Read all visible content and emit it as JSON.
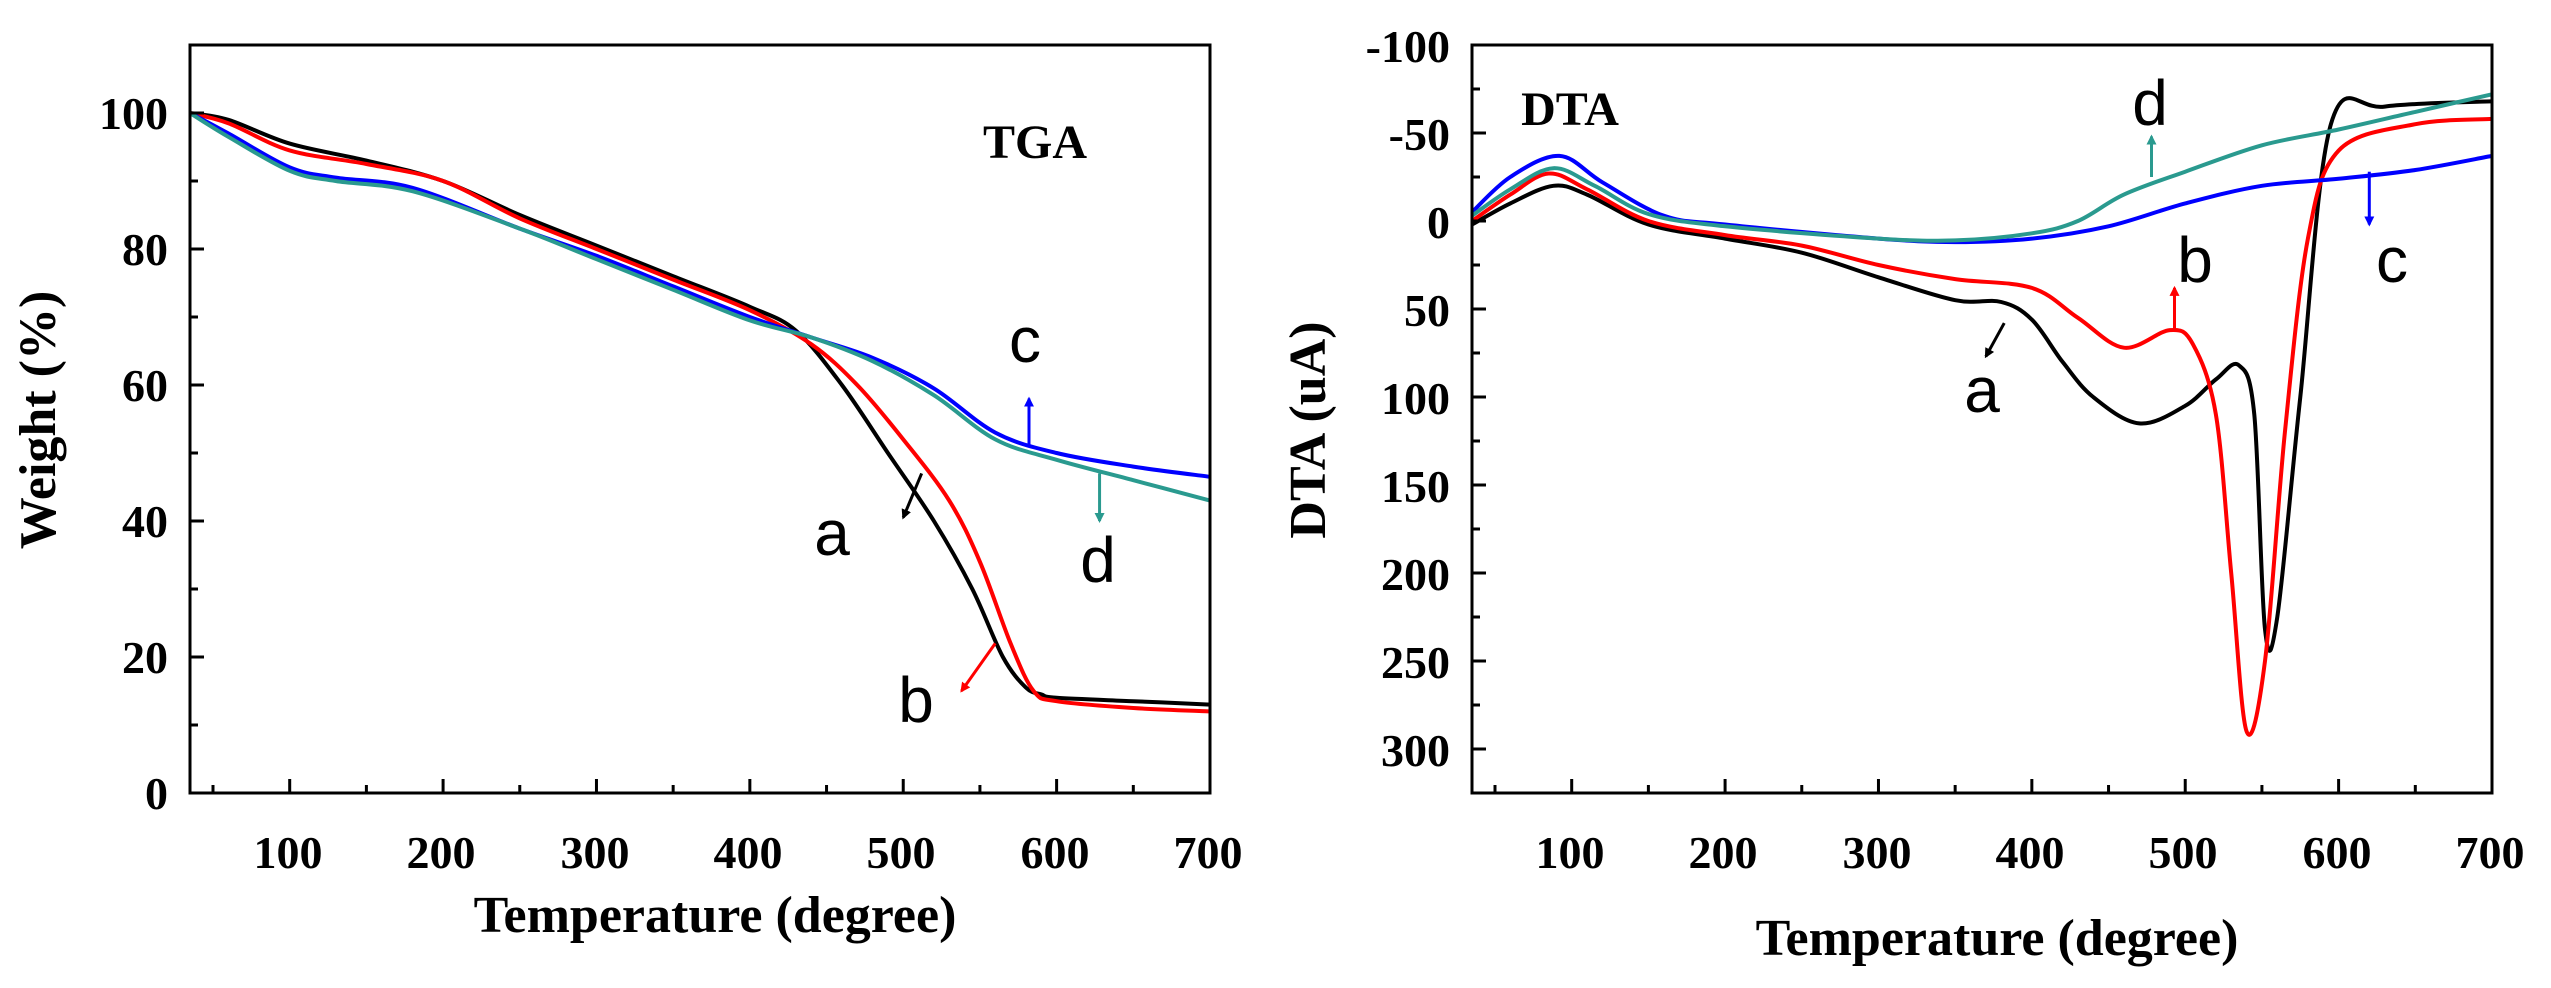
{
  "chart_data": [
    {
      "type": "line",
      "title": "TGA",
      "xlabel": "Temperature (degree)",
      "ylabel": "Weight (%)",
      "xlim": [
        35,
        700
      ],
      "ylim": [
        0,
        110
      ],
      "xticks": [
        100,
        200,
        300,
        400,
        500,
        600,
        700
      ],
      "yticks": [
        0,
        20,
        40,
        60,
        80,
        100
      ],
      "y_inverted": false,
      "series": [
        {
          "name": "a",
          "color": "#000000",
          "x": [
            35,
            60,
            100,
            150,
            200,
            250,
            300,
            350,
            400,
            430,
            460,
            490,
            520,
            545,
            565,
            580,
            590,
            600,
            650,
            700
          ],
          "y": [
            100,
            99,
            95.5,
            93,
            90,
            85,
            80.5,
            76,
            71.5,
            68,
            60,
            50,
            40,
            30,
            20,
            15.5,
            14.5,
            14,
            13.5,
            13
          ]
        },
        {
          "name": "b",
          "color": "#ff0000",
          "x": [
            35,
            60,
            100,
            150,
            200,
            250,
            300,
            350,
            400,
            440,
            470,
            500,
            530,
            550,
            570,
            585,
            600,
            650,
            700
          ],
          "y": [
            100,
            98.5,
            94.5,
            92.5,
            90,
            84.5,
            80,
            75.5,
            71,
            66,
            60,
            52,
            43,
            34,
            22,
            15,
            13.5,
            12.5,
            12
          ]
        },
        {
          "name": "c",
          "color": "#0000ff",
          "x": [
            35,
            60,
            100,
            130,
            180,
            250,
            300,
            350,
            400,
            440,
            480,
            520,
            560,
            600,
            650,
            700
          ],
          "y": [
            100,
            97,
            92,
            90.5,
            89,
            83,
            79,
            74.5,
            70,
            67,
            64,
            59.5,
            53,
            50,
            48,
            46.5
          ]
        },
        {
          "name": "d",
          "color": "#2a9a8f",
          "x": [
            35,
            60,
            100,
            130,
            180,
            250,
            300,
            350,
            400,
            440,
            480,
            520,
            560,
            600,
            650,
            700
          ],
          "y": [
            100,
            96.5,
            91.5,
            90,
            88.5,
            83,
            78.5,
            74,
            69.5,
            67,
            63.5,
            58.5,
            52,
            49,
            46,
            43
          ]
        }
      ],
      "annotations": [
        {
          "text": "c",
          "color": "#000000",
          "arrow_color": "#0000ff",
          "arrow_from": [
            582,
            51
          ],
          "arrow_to": [
            582,
            58
          ]
        },
        {
          "text": "d",
          "color": "#000000",
          "arrow_color": "#2a9a8f",
          "arrow_from": [
            628,
            47
          ],
          "arrow_to": [
            628,
            40
          ]
        },
        {
          "text": "a",
          "color": "#000000",
          "arrow_color": "#000000",
          "arrow_from": [
            512,
            47
          ],
          "arrow_to": [
            500,
            40.5
          ]
        },
        {
          "text": "b",
          "color": "#000000",
          "arrow_color": "#ff0000",
          "arrow_from": [
            560,
            22
          ],
          "arrow_to": [
            538,
            15
          ]
        }
      ]
    },
    {
      "type": "line",
      "title": "DTA",
      "xlabel": "Temperature (degree)",
      "ylabel": "DTA (uA)",
      "xlim": [
        35,
        700
      ],
      "ylim": [
        -100,
        325
      ],
      "xticks": [
        100,
        200,
        300,
        400,
        500,
        600,
        700
      ],
      "yticks": [
        -100,
        -50,
        0,
        50,
        100,
        150,
        200,
        250,
        300
      ],
      "y_inverted": true,
      "series": [
        {
          "name": "a",
          "color": "#000000",
          "x": [
            35,
            60,
            88,
            110,
            150,
            200,
            250,
            300,
            350,
            380,
            400,
            420,
            440,
            470,
            500,
            520,
            535,
            545,
            552,
            560,
            575,
            595,
            630,
            700
          ],
          "y": [
            2,
            -10,
            -20,
            -15,
            2,
            10,
            18,
            32,
            45,
            46,
            56,
            80,
            100,
            115,
            105,
            90,
            82,
            110,
            232,
            225,
            100,
            -55,
            -65,
            -68
          ]
        },
        {
          "name": "b",
          "color": "#ff0000",
          "x": [
            35,
            60,
            85,
            110,
            150,
            200,
            250,
            300,
            350,
            400,
            430,
            460,
            490,
            505,
            520,
            530,
            540,
            552,
            565,
            580,
            600,
            650,
            700
          ],
          "y": [
            0,
            -15,
            -27,
            -18,
            0,
            8,
            14,
            25,
            33,
            38,
            55,
            72,
            62,
            70,
            110,
            200,
            290,
            250,
            120,
            10,
            -40,
            -55,
            -58
          ]
        },
        {
          "name": "c",
          "color": "#0000ff",
          "x": [
            35,
            60,
            92,
            120,
            160,
            200,
            300,
            350,
            400,
            450,
            500,
            550,
            600,
            650,
            700
          ],
          "y": [
            -5,
            -25,
            -37,
            -22,
            -3,
            2,
            10,
            12,
            10,
            3,
            -10,
            -20,
            -24,
            -29,
            -37
          ]
        },
        {
          "name": "d",
          "color": "#2a9a8f",
          "x": [
            35,
            60,
            88,
            115,
            150,
            200,
            300,
            350,
            400,
            430,
            460,
            500,
            550,
            600,
            650,
            700
          ],
          "y": [
            -3,
            -18,
            -30,
            -20,
            -4,
            3,
            10,
            11,
            7,
            0,
            -15,
            -28,
            -43,
            -52,
            -62,
            -72
          ]
        }
      ],
      "annotations": [
        {
          "text": "d",
          "color": "#000000",
          "arrow_color": "#2a9a8f",
          "arrow_from": [
            478,
            -25
          ],
          "arrow_to": [
            478,
            -48
          ]
        },
        {
          "text": "c",
          "color": "#000000",
          "arrow_color": "#0000ff",
          "arrow_from": [
            620,
            -28
          ],
          "arrow_to": [
            620,
            2
          ]
        },
        {
          "text": "b",
          "color": "#000000",
          "arrow_color": "#ff0000",
          "arrow_from": [
            493,
            62
          ],
          "arrow_to": [
            493,
            38
          ]
        },
        {
          "text": "a",
          "color": "#000000",
          "arrow_color": "#000000",
          "arrow_from": [
            382,
            58
          ],
          "arrow_to": [
            370,
            77
          ]
        }
      ]
    }
  ]
}
